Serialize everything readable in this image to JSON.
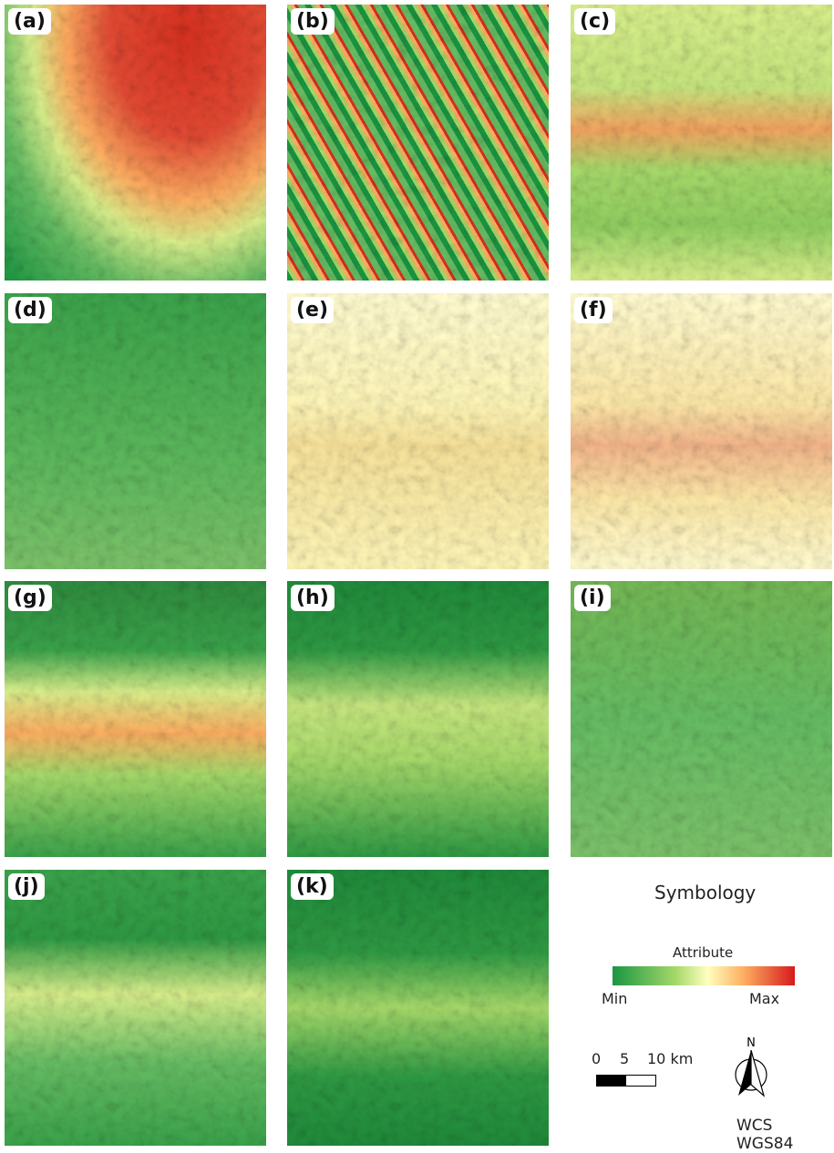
{
  "panels": [
    {
      "label": "(a)"
    },
    {
      "label": "(b)"
    },
    {
      "label": "(c)"
    },
    {
      "label": "(d)"
    },
    {
      "label": "(e)"
    },
    {
      "label": "(f)"
    },
    {
      "label": "(g)"
    },
    {
      "label": "(h)"
    },
    {
      "label": "(i)"
    },
    {
      "label": "(j)"
    },
    {
      "label": "(k)"
    }
  ],
  "legend": {
    "title": "Symbology",
    "attribute": "Attribute",
    "min": "Min",
    "max": "Max"
  },
  "scale_bar": {
    "labels": [
      "0",
      "5",
      "10 km"
    ]
  },
  "north": "N",
  "crs": "WCS WGS84"
}
